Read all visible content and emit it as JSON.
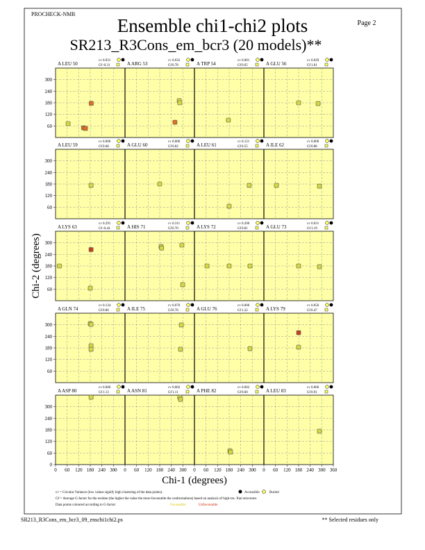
{
  "header": {
    "program": "PROCHECK-NMR",
    "page": "Page  2",
    "title": "Ensemble chi1-chi2 plots",
    "subtitle": "SR213_R3Cons_em_bcr3 (20 models)**"
  },
  "axes": {
    "x_label": "Chi-1 (degrees)",
    "y_label": "Chi-2 (degrees)",
    "xlim": [
      0,
      360
    ],
    "ylim": [
      0,
      360
    ],
    "xticks": [
      0,
      60,
      120,
      180,
      240,
      300,
      360
    ],
    "yticks": [
      0,
      60,
      120,
      180,
      240,
      300
    ]
  },
  "cv_prefix": "cv",
  "gf_prefix": "Gf",
  "panels": [
    {
      "residue": "A LEU 50",
      "cv": "0.031",
      "gf": "-0.31",
      "points": [
        {
          "chi1": 185,
          "chi2": 177,
          "color": "#e07020"
        },
        {
          "chi1": 65,
          "chi2": 72,
          "color": "#d8d840"
        },
        {
          "chi1": 145,
          "chi2": 50,
          "color": "#e07020"
        },
        {
          "chi1": 155,
          "chi2": 47,
          "color": "#e07020"
        }
      ]
    },
    {
      "residue": "A ARG 53",
      "cv": "0.032",
      "gf": "0.78",
      "points": [
        {
          "chi1": 281,
          "chi2": 191,
          "color": "#d8d840"
        },
        {
          "chi1": 284,
          "chi2": 180,
          "color": "#d8d840"
        },
        {
          "chi1": 259,
          "chi2": 79,
          "color": "#e07020"
        }
      ]
    },
    {
      "residue": "A TRP 54",
      "cv": "0.001",
      "gf": "0.65",
      "points": [
        {
          "chi1": 176,
          "chi2": 90,
          "color": "#d8d840"
        }
      ]
    },
    {
      "residue": "A GLU 56",
      "cv": "0.029",
      "gf": "1.01",
      "points": [
        {
          "chi1": 180,
          "chi2": 180,
          "color": "#d8d840"
        },
        {
          "chi1": 281,
          "chi2": 176,
          "color": "#d8d840"
        }
      ]
    },
    {
      "residue": "A LEU 59",
      "cv": "0.000",
      "gf": "0.68",
      "points": [
        {
          "chi1": 184,
          "chi2": 173,
          "color": "#d8d840"
        }
      ]
    },
    {
      "residue": "A GLU 60",
      "cv": "0.000",
      "gf": "0.82",
      "points": [
        {
          "chi1": 180,
          "chi2": 180,
          "color": "#d8d840"
        }
      ]
    },
    {
      "residue": "A LEU 61",
      "cv": "0.121",
      "gf": "0.55",
      "points": [
        {
          "chi1": 180,
          "chi2": 65,
          "color": "#d8d840"
        },
        {
          "chi1": 284,
          "chi2": 173,
          "color": "#d8d840"
        }
      ]
    },
    {
      "residue": "A ILE 62",
      "cv": "0.000",
      "gf": "0.88",
      "points": [
        {
          "chi1": 65,
          "chi2": 173,
          "color": "#d8d840"
        },
        {
          "chi1": 288,
          "chi2": 169,
          "color": "#d8d840"
        }
      ]
    },
    {
      "residue": "A LYS 63",
      "cv": "0.291",
      "gf": "-0.44",
      "points": [
        {
          "chi1": 20,
          "chi2": 180,
          "color": "#d8d840"
        },
        {
          "chi1": 184,
          "chi2": 265,
          "color": "#c84020"
        },
        {
          "chi1": 180,
          "chi2": 65,
          "color": "#d8d840"
        }
      ]
    },
    {
      "residue": "A HIS 71",
      "cv": "0.311",
      "gf": "0.70",
      "points": [
        {
          "chi1": 187,
          "chi2": 281,
          "color": "#d8d840"
        },
        {
          "chi1": 190,
          "chi2": 273,
          "color": "#d8d840"
        },
        {
          "chi1": 295,
          "chi2": 288,
          "color": "#d8d840"
        },
        {
          "chi1": 299,
          "chi2": 83,
          "color": "#d8d840"
        }
      ]
    },
    {
      "residue": "A LYS 72",
      "cv": "0.200",
      "gf": "0.81",
      "points": [
        {
          "chi1": 65,
          "chi2": 180,
          "color": "#d8d840"
        },
        {
          "chi1": 180,
          "chi2": 180,
          "color": "#d8d840"
        },
        {
          "chi1": 288,
          "chi2": 180,
          "color": "#d8d840"
        }
      ]
    },
    {
      "residue": "A GLU 73",
      "cv": "0.031",
      "gf": "1.19",
      "points": [
        {
          "chi1": 180,
          "chi2": 180,
          "color": "#d8d840"
        },
        {
          "chi1": 288,
          "chi2": 176,
          "color": "#d8d840"
        }
      ]
    },
    {
      "residue": "A GLN 74",
      "cv": "0.134",
      "gf": "0.86",
      "points": [
        {
          "chi1": 180,
          "chi2": 306,
          "color": "#d8d840"
        },
        {
          "chi1": 184,
          "chi2": 302,
          "color": "#d8d840"
        },
        {
          "chi1": 184,
          "chi2": 191,
          "color": "#d8d840"
        },
        {
          "chi1": 184,
          "chi2": 173,
          "color": "#d8d840"
        }
      ]
    },
    {
      "residue": "A ILE 75",
      "cv": "0.076",
      "gf": "0.76",
      "points": [
        {
          "chi1": 292,
          "chi2": 299,
          "color": "#d8d840"
        },
        {
          "chi1": 288,
          "chi2": 173,
          "color": "#d8d840"
        }
      ]
    },
    {
      "residue": "A GLU 76",
      "cv": "0.000",
      "gf": "1.22",
      "points": [
        {
          "chi1": 288,
          "chi2": 176,
          "color": "#d8d840"
        }
      ]
    },
    {
      "residue": "A LYS 79",
      "cv": "0.056",
      "gf": "0.47",
      "points": [
        {
          "chi1": 180,
          "chi2": 259,
          "color": "#c84020"
        },
        {
          "chi1": 180,
          "chi2": 184,
          "color": "#d8d840"
        }
      ]
    },
    {
      "residue": "A ASP 80",
      "cv": "0.000",
      "gf": "1.13",
      "points": [
        {
          "chi1": 184,
          "chi2": 349,
          "color": "#d8d840"
        }
      ]
    },
    {
      "residue": "A ASN 81",
      "cv": "0.002",
      "gf": "1.11",
      "points": [
        {
          "chi1": 284,
          "chi2": 349,
          "color": "#d8d840"
        },
        {
          "chi1": 288,
          "chi2": 338,
          "color": "#d8d840"
        }
      ]
    },
    {
      "residue": "A PHE 82",
      "cv": "0.002",
      "gf": "0.60",
      "points": [
        {
          "chi1": 184,
          "chi2": 72,
          "color": "#d8d840"
        },
        {
          "chi1": 187,
          "chi2": 65,
          "color": "#d8d840"
        }
      ]
    },
    {
      "residue": "A LEU 83",
      "cv": "0.000",
      "gf": "0.91",
      "points": [
        {
          "chi1": 288,
          "chi2": 173,
          "color": "#d8d840"
        }
      ]
    }
  ],
  "legend": {
    "cv_note": "cv = Circular Variance (low values signify high clustering of the data points).",
    "accessible": "Accessible",
    "buried": "Buried",
    "gf_note": "Gf = Average G-factor for the residue (the higher the value the more favourable the conformations) based on analysis of high-res. Xtal structures",
    "colour_note": "Data points coloured according to G-factor:",
    "favourable": "Favourable",
    "unfavourable": "Unfavourable"
  },
  "footer": {
    "file": "SR213_R3Cons_em_bcr3_09_enschi1chi2.ps",
    "note": "** Selected residues only"
  }
}
